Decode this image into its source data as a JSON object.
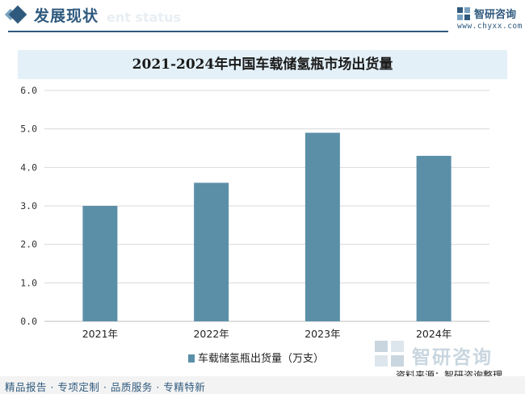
{
  "header": {
    "section_title": "发展现状",
    "section_subtitle": "ent status",
    "brand_name": "智研咨询",
    "brand_url": "www.chyxx.com"
  },
  "chart_data": {
    "type": "bar",
    "title": "2021-2024年中国车载储氢瓶市场出货量",
    "categories": [
      "2021年",
      "2022年",
      "2023年",
      "2024年"
    ],
    "series": [
      {
        "name": "车载储氢瓶出货量（万支）",
        "values": [
          3.0,
          3.6,
          4.9,
          4.3
        ]
      }
    ],
    "ylim": [
      0,
      6
    ],
    "yticks": [
      "0.0",
      "1.0",
      "2.0",
      "3.0",
      "4.0",
      "5.0",
      "6.0"
    ],
    "grid": true,
    "legend": "bottom-center",
    "colors": {
      "bar": "#5b8fa8",
      "grid": "#d9d9d9"
    }
  },
  "watermark_brand": "智研咨询",
  "source": "资料来源：智研咨询整理",
  "footer": "精品报告 · 专项定制 · 品质服务 · 专精特新"
}
